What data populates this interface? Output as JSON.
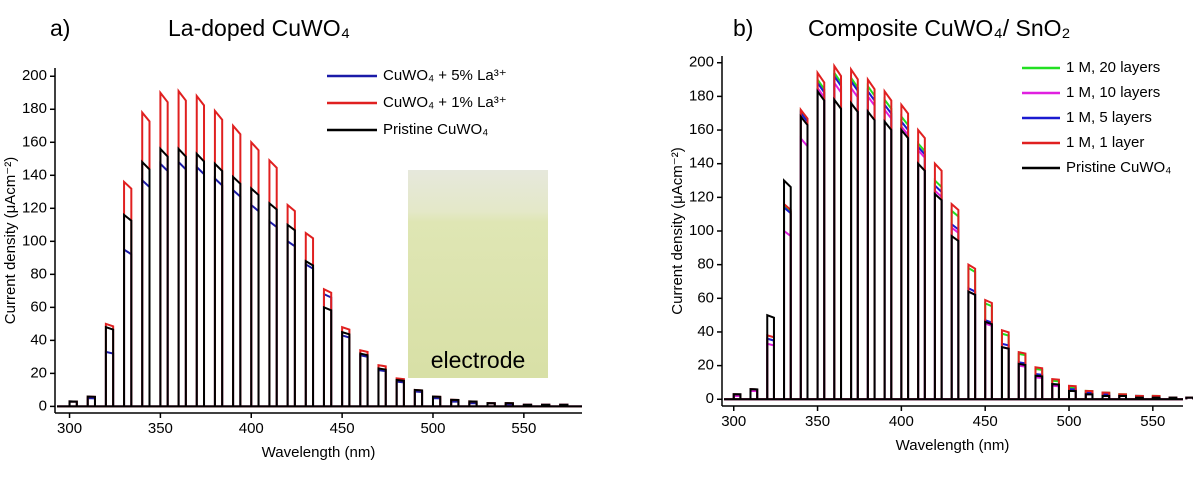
{
  "chart_data": [
    {
      "type": "chopped",
      "panel_label": "a)",
      "title": "La-doped CuWO₄",
      "x_label": "Wavelength (nm)",
      "y_label": "Current density (μAcm⁻²)",
      "annotations": [
        "electrode"
      ],
      "x": [
        300,
        310,
        320,
        330,
        340,
        350,
        360,
        370,
        380,
        390,
        400,
        410,
        420,
        430,
        440,
        450,
        460,
        470,
        480,
        490,
        500,
        510,
        520,
        530,
        540,
        550,
        560,
        570
      ],
      "series": [
        {
          "name": "CuWO₄ + 5% La³⁺",
          "color": "#1a1aa8",
          "values": [
            3,
            5,
            33,
            95,
            137,
            147,
            148,
            145,
            138,
            131,
            122,
            112,
            100,
            86,
            68,
            43,
            31,
            22,
            15,
            9,
            5,
            3,
            2,
            2,
            1,
            1,
            1,
            1
          ]
        },
        {
          "name": "CuWO₄ + 1% La³⁺",
          "color": "#e02020",
          "values": [
            3,
            6,
            50,
            136,
            178,
            190,
            191,
            188,
            179,
            170,
            160,
            149,
            122,
            105,
            71,
            48,
            34,
            25,
            17,
            10,
            6,
            4,
            3,
            2,
            2,
            1,
            1,
            1
          ]
        },
        {
          "name": "Pristine CuWO₄",
          "color": "#000000",
          "values": [
            3,
            6,
            48,
            116,
            148,
            156,
            156,
            153,
            147,
            139,
            132,
            123,
            110,
            88,
            60,
            45,
            32,
            23,
            16,
            10,
            6,
            4,
            3,
            2,
            2,
            1,
            1,
            1
          ]
        }
      ],
      "xlim": [
        292,
        582
      ],
      "xticks": [
        300,
        350,
        400,
        450,
        500,
        550
      ],
      "ylim": [
        -4,
        205
      ],
      "yticks": [
        0,
        20,
        40,
        60,
        80,
        100,
        120,
        140,
        160,
        180,
        200
      ]
    },
    {
      "type": "chopped",
      "panel_label": "b)",
      "title": "Composite CuWO₄/ SnO₂",
      "x_label": "Wavelength (nm)",
      "y_label": "Current density (μAcm⁻²)",
      "x": [
        300,
        310,
        320,
        330,
        340,
        350,
        360,
        370,
        380,
        390,
        400,
        410,
        420,
        430,
        440,
        450,
        460,
        470,
        480,
        490,
        500,
        510,
        520,
        530,
        540,
        550,
        560,
        570
      ],
      "series": [
        {
          "name": "1 M, 20 layers",
          "color": "#22e022",
          "values": [
            3,
            6,
            36,
            115,
            171,
            190,
            194,
            191,
            186,
            178,
            168,
            152,
            130,
            112,
            78,
            57,
            39,
            27,
            18,
            11,
            7,
            5,
            4,
            3,
            2,
            2,
            1,
            1
          ]
        },
        {
          "name": "1 M, 10 layers",
          "color": "#e020e0",
          "values": [
            2,
            5,
            33,
            100,
            155,
            185,
            188,
            185,
            180,
            172,
            162,
            148,
            124,
            102,
            64,
            45,
            31,
            20,
            13,
            8,
            5,
            3,
            2,
            2,
            1,
            1,
            1,
            1
          ]
        },
        {
          "name": "1 M, 5 layers",
          "color": "#1a1ad0",
          "values": [
            3,
            6,
            36,
            114,
            170,
            188,
            192,
            189,
            183,
            175,
            165,
            150,
            127,
            104,
            66,
            47,
            33,
            22,
            15,
            9,
            6,
            4,
            3,
            2,
            2,
            1,
            1,
            1
          ]
        },
        {
          "name": "1 M, 1 layer",
          "color": "#e02020",
          "values": [
            3,
            6,
            38,
            116,
            172,
            194,
            198,
            196,
            190,
            183,
            175,
            160,
            140,
            116,
            80,
            59,
            41,
            28,
            19,
            12,
            8,
            5,
            4,
            3,
            2,
            2,
            1,
            1
          ]
        },
        {
          "name": "Pristine CuWO₄",
          "color": "#000000",
          "values": [
            3,
            6,
            50,
            130,
            168,
            183,
            178,
            176,
            171,
            165,
            160,
            140,
            122,
            97,
            64,
            46,
            31,
            21,
            14,
            9,
            5,
            3,
            2,
            2,
            1,
            1,
            1,
            1
          ]
        }
      ],
      "xlim": [
        293,
        568
      ],
      "xticks": [
        300,
        350,
        400,
        450,
        500,
        550
      ],
      "ylim": [
        -4,
        204
      ],
      "yticks": [
        0,
        20,
        40,
        60,
        80,
        100,
        120,
        140,
        160,
        180,
        200
      ]
    }
  ]
}
